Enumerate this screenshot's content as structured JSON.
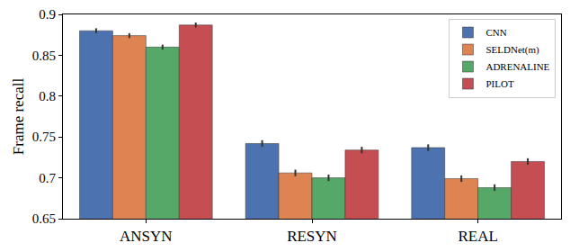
{
  "chart_data": {
    "type": "bar",
    "y_label": "Frame recall",
    "categories": [
      "ANSYN",
      "RESYN",
      "REAL"
    ],
    "series": [
      {
        "name": "CNN",
        "color": "#4c72b0",
        "values": [
          0.88,
          0.742,
          0.737
        ],
        "errors": [
          0.003,
          0.004,
          0.004
        ]
      },
      {
        "name": "SELDNet(m)",
        "color": "#dd8452",
        "values": [
          0.874,
          0.706,
          0.699
        ],
        "errors": [
          0.003,
          0.004,
          0.004
        ]
      },
      {
        "name": "ADRENALINE",
        "color": "#55a868",
        "values": [
          0.86,
          0.7,
          0.688
        ],
        "errors": [
          0.003,
          0.004,
          0.004
        ]
      },
      {
        "name": "PILOT",
        "color": "#c44e52",
        "values": [
          0.887,
          0.734,
          0.72
        ],
        "errors": [
          0.003,
          0.004,
          0.004
        ]
      }
    ],
    "ylim": [
      0.65,
      0.9
    ],
    "yticks": [
      0.65,
      0.7,
      0.75,
      0.8,
      0.85,
      0.9
    ],
    "legend": "top right",
    "grid": false
  }
}
